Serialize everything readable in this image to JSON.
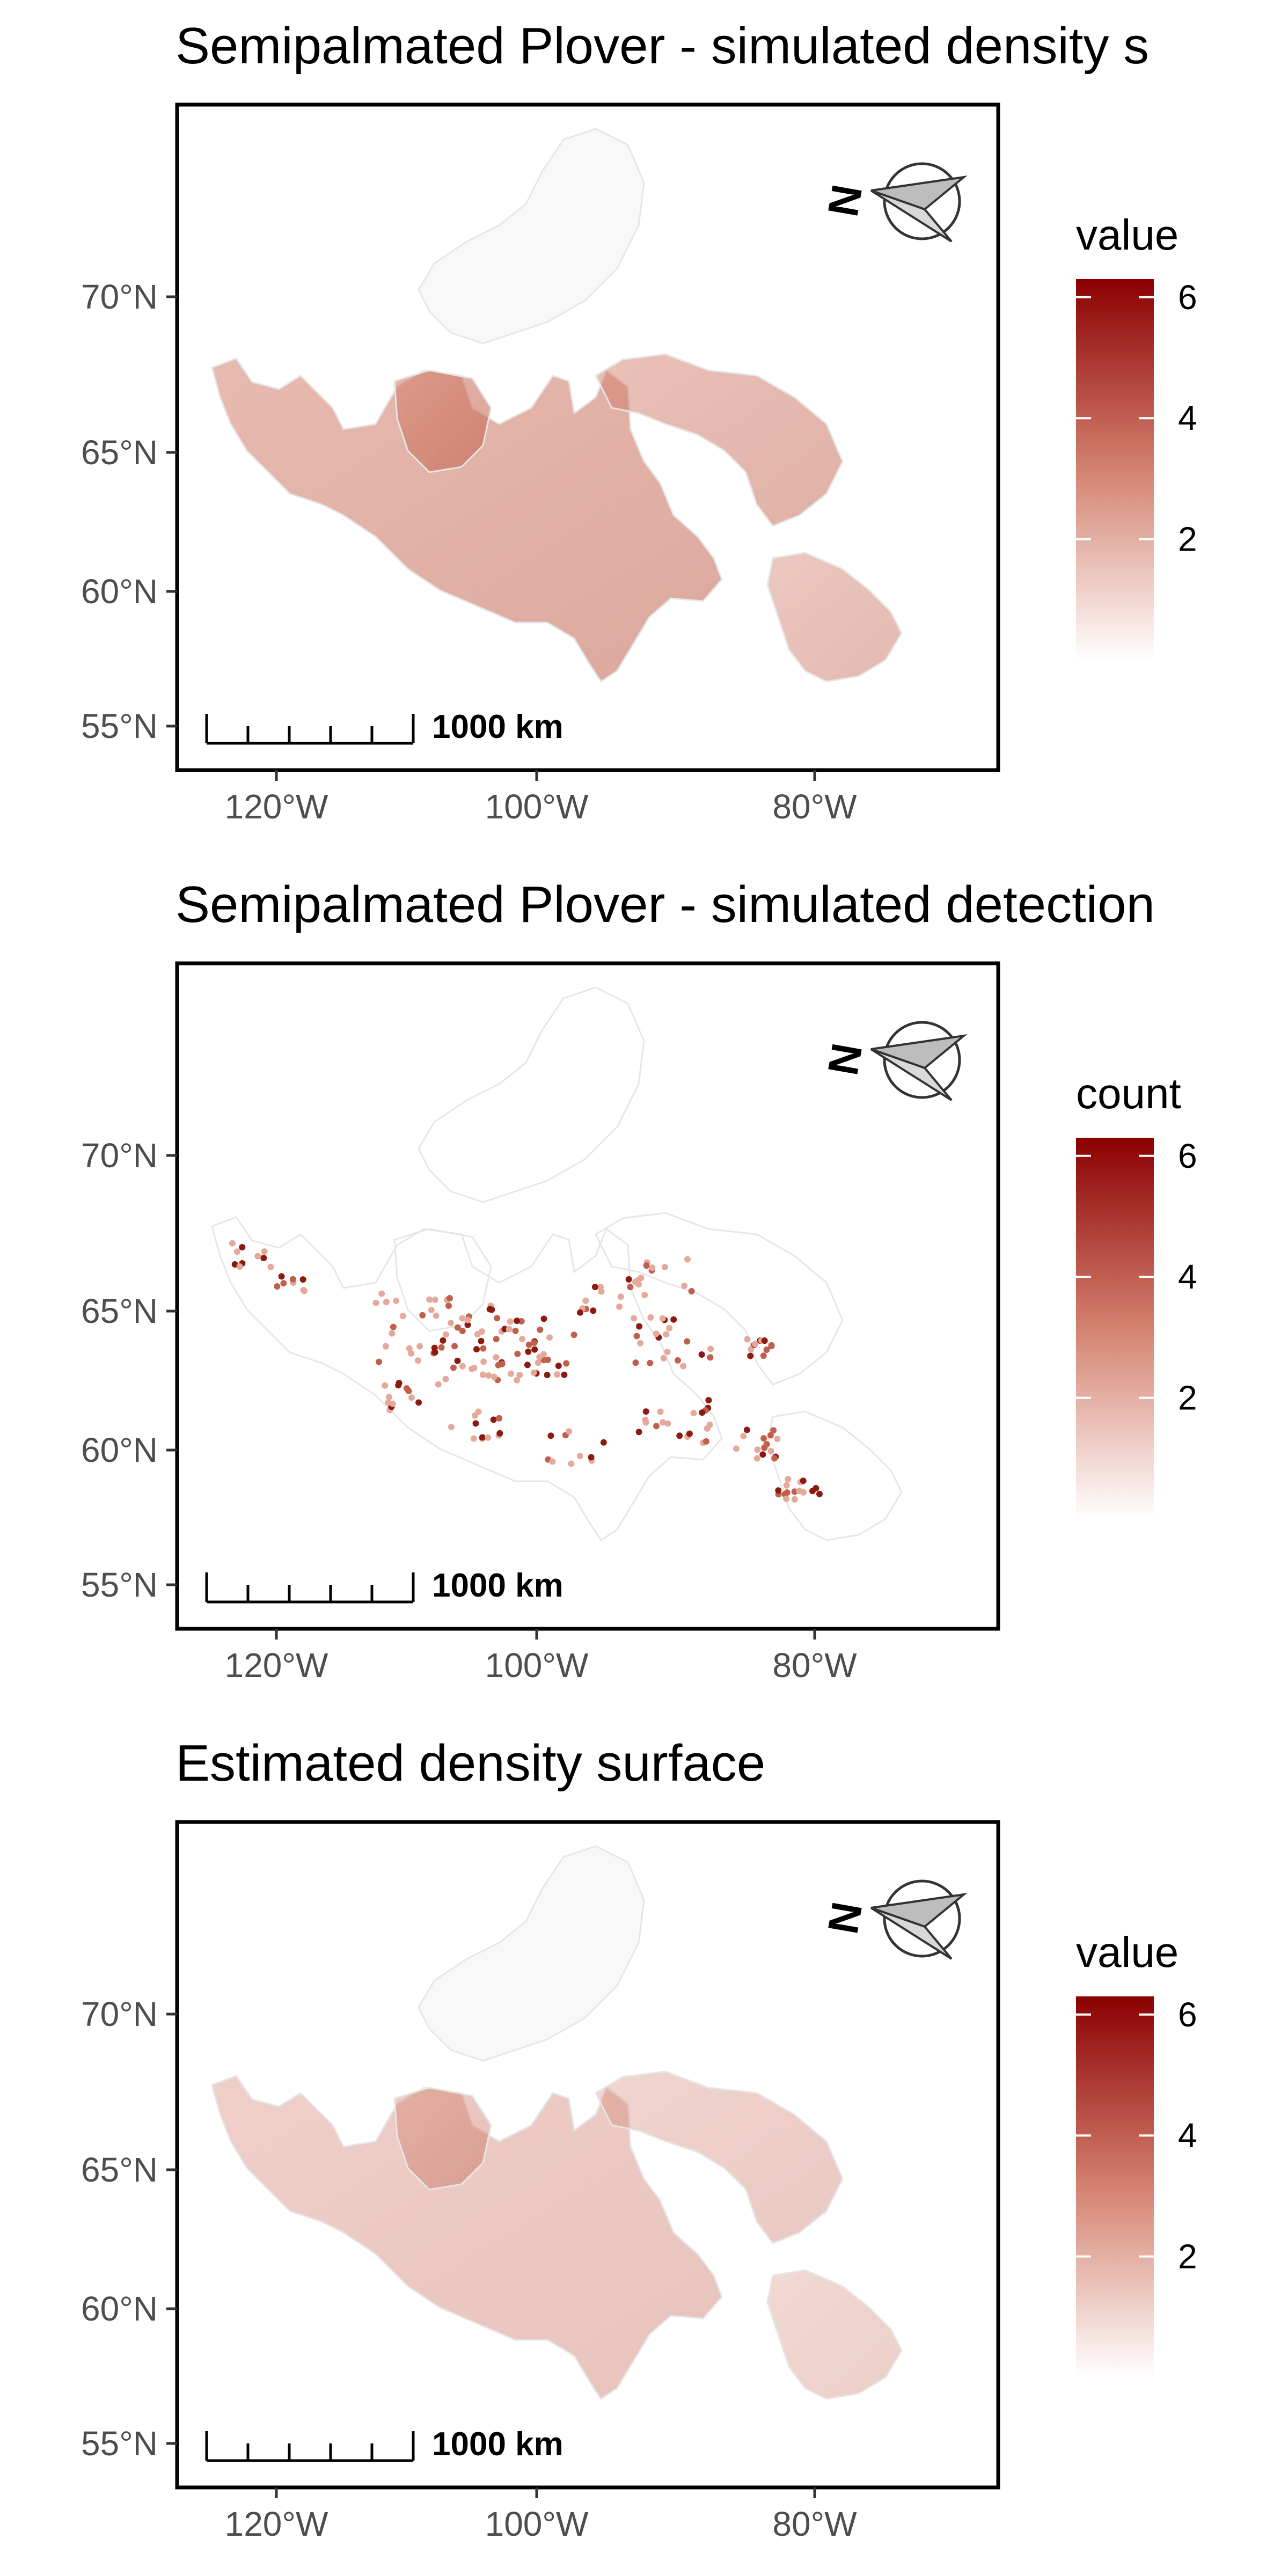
{
  "panels": [
    {
      "title": "Semipalmated Plover - simulated density s",
      "legend_title": "value",
      "legend_ticks": [
        "6",
        "4",
        "2"
      ],
      "legend_values": [
        6,
        4,
        2
      ],
      "legend_max": 6.3,
      "lat_labels": [
        "70°N",
        "65°N",
        "60°N",
        "55°N"
      ],
      "lon_labels": [
        "120°W",
        "100°W",
        "80°W"
      ],
      "scale_label": "1000 km",
      "north_label": "N",
      "intensity": 0.55,
      "points": false
    },
    {
      "title": "Semipalmated Plover - simulated detection",
      "legend_title": "count",
      "legend_ticks": [
        "6",
        "4",
        "2"
      ],
      "legend_values": [
        6,
        4,
        2
      ],
      "legend_max": 6.3,
      "lat_labels": [
        "70°N",
        "65°N",
        "60°N",
        "55°N"
      ],
      "lon_labels": [
        "120°W",
        "100°W",
        "80°W"
      ],
      "scale_label": "1000 km",
      "north_label": "N",
      "intensity": 0,
      "points": true
    },
    {
      "title": "Estimated density surface",
      "legend_title": "value",
      "legend_ticks": [
        "6",
        "4",
        "2"
      ],
      "legend_values": [
        6,
        4,
        2
      ],
      "legend_max": 6.3,
      "lat_labels": [
        "70°N",
        "65°N",
        "60°N",
        "55°N"
      ],
      "lon_labels": [
        "120°W",
        "100°W",
        "80°W"
      ],
      "scale_label": "1000 km",
      "north_label": "N",
      "intensity": 0.38,
      "points": false
    }
  ],
  "colors": {
    "scale_low": "#ffffff",
    "scale_mid": "#d4826f",
    "scale_high": "#8b0000",
    "land_outline": "#e6e6e6",
    "frame": "#000000"
  }
}
